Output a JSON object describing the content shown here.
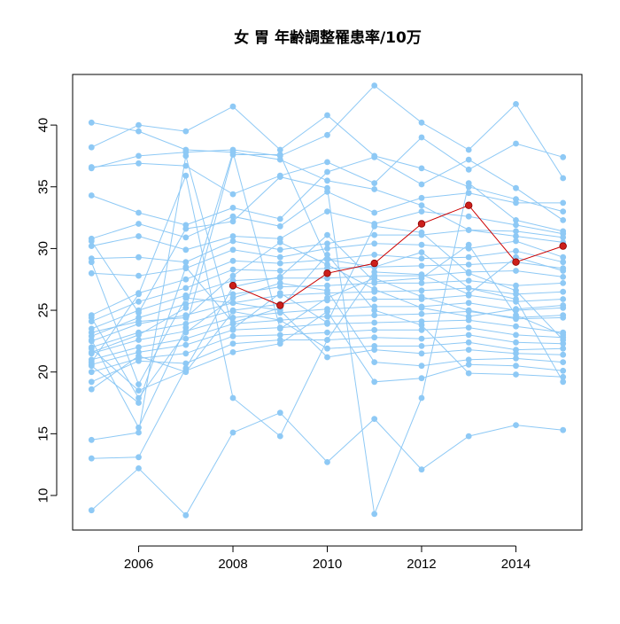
{
  "chart_data": {
    "type": "line",
    "title": "女 胃 年齢調整罹患率/10万",
    "xlabel": "",
    "ylabel": "",
    "xlim": [
      2004.6,
      2015.4
    ],
    "ylim": [
      7.2,
      44.1
    ],
    "x_ticks": [
      2006,
      2008,
      2010,
      2012,
      2014
    ],
    "y_ticks": [
      10,
      15,
      20,
      25,
      30,
      35,
      40
    ],
    "grid": false,
    "legend": "none",
    "colors": {
      "background_series": "#8ec9f5",
      "highlight_series": "#cc1f1a"
    },
    "highlight": {
      "x": [
        2008,
        2009,
        2010,
        2011,
        2012,
        2013,
        2014,
        2015
      ],
      "values": [
        27.0,
        25.4,
        28.0,
        28.8,
        32.0,
        33.5,
        28.9,
        30.2
      ]
    },
    "series": [
      {
        "x": [
          2005,
          2006,
          2007,
          2008,
          2009,
          2010,
          2011,
          2012,
          2013,
          2014,
          2015
        ],
        "values": [
          40.2,
          39.5,
          38.0,
          37.8,
          37.2,
          35.5,
          34.8,
          33.5,
          31.5,
          31.0,
          30.5
        ]
      },
      {
        "x": [
          2005,
          2006,
          2007,
          2008,
          2009,
          2010,
          2011,
          2012,
          2013,
          2014,
          2015
        ],
        "values": [
          38.2,
          40.0,
          39.5,
          41.5,
          38.0,
          40.8,
          37.5,
          36.5,
          35.0,
          34.0,
          33.0
        ]
      },
      {
        "x": [
          2005,
          2006,
          2007,
          2008,
          2009,
          2010,
          2011,
          2012,
          2013,
          2014,
          2015
        ],
        "values": [
          36.5,
          37.5,
          37.8,
          38.0,
          37.5,
          39.2,
          43.2,
          40.2,
          38.0,
          41.7,
          35.7
        ]
      },
      {
        "x": [
          2005,
          2006,
          2007,
          2008,
          2009,
          2010,
          2011,
          2012,
          2013,
          2014,
          2015
        ],
        "values": [
          36.6,
          36.9,
          36.7,
          34.4,
          35.9,
          37.0,
          35.3,
          39.0,
          36.4,
          38.5,
          37.4
        ]
      },
      {
        "x": [
          2005,
          2006,
          2007,
          2008,
          2009,
          2010,
          2011,
          2012,
          2013,
          2014,
          2015
        ],
        "values": [
          34.3,
          32.9,
          31.9,
          33.3,
          32.4,
          36.2,
          37.4,
          35.2,
          37.2,
          34.9,
          32.3
        ]
      },
      {
        "x": [
          2005,
          2006,
          2007,
          2008,
          2009,
          2010,
          2011,
          2012,
          2013,
          2014,
          2015
        ],
        "values": [
          30.8,
          32.0,
          30.9,
          32.6,
          31.8,
          34.6,
          32.9,
          34.1,
          34.5,
          33.7,
          33.7
        ]
      },
      {
        "x": [
          2005,
          2006,
          2007,
          2008,
          2009,
          2010,
          2011,
          2012,
          2013,
          2014,
          2015
        ],
        "values": [
          30.2,
          31.0,
          29.9,
          31.0,
          30.8,
          33.0,
          32.0,
          33.0,
          32.6,
          31.9,
          31.2
        ]
      },
      {
        "x": [
          2005,
          2006,
          2007,
          2008,
          2009,
          2010,
          2011,
          2012,
          2013,
          2014,
          2015
        ],
        "values": [
          29.2,
          29.3,
          28.9,
          30.6,
          29.9,
          30.4,
          31.1,
          31.1,
          31.5,
          31.4,
          30.9
        ]
      },
      {
        "x": [
          2005,
          2006,
          2007,
          2008,
          2009,
          2010,
          2011,
          2012,
          2013,
          2014,
          2015
        ],
        "values": [
          28.0,
          27.8,
          28.4,
          29.9,
          29.3,
          30.0,
          30.4,
          30.3,
          30.0,
          30.6,
          29.3
        ]
      },
      {
        "x": [
          2005,
          2006,
          2007,
          2008,
          2009,
          2010,
          2011,
          2012,
          2013,
          2014,
          2015
        ],
        "values": [
          24.6,
          26.4,
          27.5,
          29.0,
          28.8,
          29.1,
          29.5,
          29.2,
          29.3,
          29.8,
          28.9
        ]
      },
      {
        "x": [
          2005,
          2006,
          2007,
          2008,
          2009,
          2010,
          2011,
          2012,
          2013,
          2014,
          2015
        ],
        "values": [
          24.1,
          25.7,
          26.8,
          28.3,
          28.2,
          28.4,
          28.5,
          28.6,
          28.7,
          28.9,
          28.4
        ]
      },
      {
        "x": [
          2005,
          2006,
          2007,
          2008,
          2009,
          2010,
          2011,
          2012,
          2013,
          2014,
          2015
        ],
        "values": [
          23.5,
          25.0,
          26.2,
          27.4,
          27.6,
          27.6,
          27.8,
          27.8,
          28.1,
          28.2,
          27.7
        ]
      },
      {
        "x": [
          2005,
          2006,
          2007,
          2008,
          2009,
          2010,
          2011,
          2012,
          2013,
          2014,
          2015
        ],
        "values": [
          22.9,
          24.4,
          25.5,
          26.3,
          26.9,
          27.0,
          27.2,
          27.2,
          27.4,
          27.0,
          27.2
        ]
      },
      {
        "x": [
          2005,
          2006,
          2007,
          2008,
          2009,
          2010,
          2011,
          2012,
          2013,
          2014,
          2015
        ],
        "values": [
          22.5,
          23.9,
          24.6,
          25.6,
          26.2,
          26.4,
          26.5,
          26.6,
          26.8,
          26.3,
          26.5
        ]
      },
      {
        "x": [
          2005,
          2006,
          2007,
          2008,
          2009,
          2010,
          2011,
          2012,
          2013,
          2014,
          2015
        ],
        "values": [
          22.0,
          23.2,
          23.9,
          25.0,
          25.5,
          25.8,
          25.9,
          25.9,
          26.2,
          25.7,
          25.9
        ]
      },
      {
        "x": [
          2005,
          2006,
          2007,
          2008,
          2009,
          2010,
          2011,
          2012,
          2013,
          2014,
          2015
        ],
        "values": [
          21.5,
          22.6,
          23.3,
          24.4,
          24.8,
          25.1,
          25.3,
          25.3,
          25.6,
          25.0,
          25.2
        ]
      },
      {
        "x": [
          2005,
          2006,
          2007,
          2008,
          2009,
          2010,
          2011,
          2012,
          2013,
          2014,
          2015
        ],
        "values": [
          21.0,
          22.0,
          22.7,
          23.9,
          24.2,
          24.5,
          24.6,
          24.7,
          24.9,
          24.4,
          24.6
        ]
      },
      {
        "x": [
          2005,
          2006,
          2007,
          2008,
          2009,
          2010,
          2011,
          2012,
          2013,
          2014,
          2015
        ],
        "values": [
          20.6,
          21.6,
          22.2,
          23.4,
          23.6,
          23.9,
          24.0,
          24.1,
          24.2,
          23.7,
          23.2
        ]
      },
      {
        "x": [
          2005,
          2006,
          2007,
          2008,
          2009,
          2010,
          2011,
          2012,
          2013,
          2014,
          2015
        ],
        "values": [
          20.0,
          21.1,
          21.5,
          22.9,
          23.0,
          23.2,
          23.4,
          23.4,
          23.6,
          23.0,
          22.8
        ]
      },
      {
        "x": [
          2005,
          2006,
          2007,
          2008,
          2009,
          2010,
          2011,
          2012,
          2013,
          2014,
          2015
        ],
        "values": [
          19.2,
          20.9,
          20.7,
          22.3,
          22.6,
          22.6,
          22.8,
          22.7,
          23.0,
          22.4,
          22.3
        ]
      },
      {
        "x": [
          2005,
          2006,
          2007,
          2008,
          2009,
          2010,
          2011,
          2012,
          2013,
          2014,
          2015
        ],
        "values": [
          18.6,
          21.3,
          20.0,
          24.9,
          24.2,
          21.9,
          22.1,
          22.1,
          22.4,
          21.8,
          21.9
        ]
      },
      {
        "x": [
          2005,
          2006,
          2007,
          2008,
          2009,
          2010,
          2011,
          2012,
          2013,
          2014,
          2015
        ],
        "values": [
          28.9,
          19.0,
          26.0,
          25.6,
          25.0,
          21.2,
          21.8,
          21.5,
          21.8,
          21.5,
          21.4
        ]
      },
      {
        "x": [
          2005,
          2006,
          2007,
          2008,
          2009,
          2010,
          2011,
          2012,
          2013,
          2014,
          2015
        ],
        "values": [
          24.4,
          17.9,
          23.2,
          26.0,
          27.2,
          26.6,
          20.8,
          20.5,
          21.0,
          21.1,
          20.8
        ]
      },
      {
        "x": [
          2005,
          2006,
          2007,
          2008,
          2009,
          2010,
          2011,
          2012,
          2013,
          2014,
          2015
        ],
        "values": [
          21.9,
          18.5,
          20.1,
          21.6,
          22.3,
          24.9,
          19.2,
          19.5,
          20.6,
          20.5,
          20.1
        ]
      },
      {
        "x": [
          2005,
          2006,
          2007,
          2008,
          2009,
          2010,
          2011,
          2012,
          2013,
          2014,
          2015
        ],
        "values": [
          20.5,
          17.5,
          28.5,
          24.0,
          25.2,
          29.5,
          25.0,
          23.8,
          19.9,
          19.8,
          19.6
        ]
      },
      {
        "x": [
          2005,
          2006,
          2007,
          2008,
          2009,
          2010,
          2011,
          2012,
          2013,
          2014,
          2015
        ],
        "values": [
          22.6,
          15.5,
          23.6,
          37.6,
          37.6,
          29.1,
          28.5,
          29.7,
          26.8,
          25.9,
          19.2
        ]
      },
      {
        "x": [
          2005,
          2006,
          2007,
          2008,
          2009,
          2010,
          2011,
          2012,
          2013,
          2014,
          2015
        ],
        "values": [
          14.5,
          15.1,
          37.5,
          23.5,
          26.4,
          24.0,
          31.8,
          31.3,
          28.0,
          26.6,
          22.6
        ]
      },
      {
        "x": [
          2005,
          2006,
          2007,
          2008,
          2009,
          2010,
          2011,
          2012,
          2013,
          2014,
          2015
        ],
        "values": [
          13.0,
          13.1,
          20.3,
          26.9,
          27.7,
          31.1,
          27.3,
          27.6,
          30.3,
          24.6,
          23.0
        ]
      },
      {
        "x": [
          2005,
          2006,
          2007,
          2008,
          2009,
          2010,
          2011,
          2012,
          2013,
          2014,
          2015
        ],
        "values": [
          8.8,
          12.2,
          8.4,
          15.1,
          16.7,
          12.7,
          16.2,
          12.1,
          14.8,
          15.7,
          15.3
        ]
      },
      {
        "x": [
          2005,
          2006,
          2007,
          2008,
          2009,
          2010,
          2011,
          2012,
          2013,
          2014,
          2015
        ],
        "values": [
          20.8,
          26.3,
          35.9,
          17.9,
          14.8,
          22.6,
          28.1,
          27.9,
          26.3,
          29.3,
          28.2
        ]
      },
      {
        "x": [
          2005,
          2006,
          2007,
          2008,
          2009,
          2010,
          2011,
          2012,
          2013,
          2014,
          2015
        ],
        "values": [
          30.6,
          24.8,
          31.6,
          32.2,
          35.8,
          34.9,
          8.5,
          17.9,
          35.3,
          32.3,
          31.4
        ]
      },
      {
        "x": [
          2005,
          2006,
          2007,
          2008,
          2009,
          2010,
          2011,
          2012,
          2013,
          2014,
          2015
        ],
        "values": [
          21.6,
          23.0,
          25.2,
          37.8,
          23.5,
          26.0,
          27.6,
          26.1,
          25.0,
          24.3,
          24.4
        ]
      },
      {
        "x": [
          2005,
          2006,
          2007,
          2008,
          2009,
          2010,
          2011,
          2012,
          2013,
          2014,
          2015
        ],
        "values": [
          23.2,
          24.1,
          24.4,
          27.8,
          30.5,
          28.7,
          26.7,
          25.2,
          24.5,
          25.1,
          25.4
        ]
      }
    ]
  }
}
